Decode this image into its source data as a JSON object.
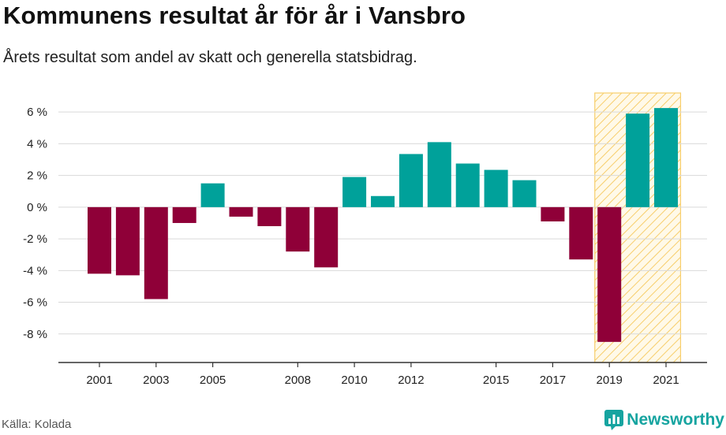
{
  "header": {
    "title": "Kommunens resultat år för år i Vansbro",
    "subtitle": "Årets resultat som andel av skatt och generella statsbidrag."
  },
  "footer": {
    "source": "Källa: Kolada",
    "brand": "Newsworthy"
  },
  "colors": {
    "positive": "#00a19a",
    "negative": "#8f0038",
    "highlight_fill": "#fff7e0",
    "highlight_stroke": "#f7ce6b",
    "grid": "#d9d9d9",
    "axis": "#333333",
    "brand": "#16a4a0"
  },
  "chart_data": {
    "type": "bar",
    "x": [
      2001,
      2002,
      2003,
      2004,
      2005,
      2006,
      2007,
      2008,
      2009,
      2010,
      2011,
      2012,
      2013,
      2014,
      2015,
      2016,
      2017,
      2018,
      2019,
      2020,
      2021
    ],
    "values": [
      -4.2,
      -4.3,
      -5.8,
      -1.0,
      1.5,
      -0.6,
      -1.2,
      -2.8,
      -3.8,
      1.9,
      0.7,
      3.35,
      4.1,
      2.75,
      2.35,
      1.7,
      -0.9,
      -3.3,
      -8.5,
      5.9,
      6.25
    ],
    "x_tick_labels": [
      "2001",
      "2003",
      "2005",
      "2008",
      "2010",
      "2012",
      "2015",
      "2017",
      "2019",
      "2021"
    ],
    "y_ticks": [
      6,
      4,
      2,
      0,
      -2,
      -4,
      -6,
      -8
    ],
    "y_tick_labels": [
      "6 %",
      "4 %",
      "2 %",
      "0 %",
      "-2 %",
      "-4 %",
      "-6 %",
      "-8 %"
    ],
    "ylim": [
      -9.8,
      7.2
    ],
    "highlight_range": [
      2019,
      2021
    ],
    "grid": true,
    "title": "Kommunens resultat år för år i Vansbro",
    "xlabel": "",
    "ylabel": ""
  }
}
